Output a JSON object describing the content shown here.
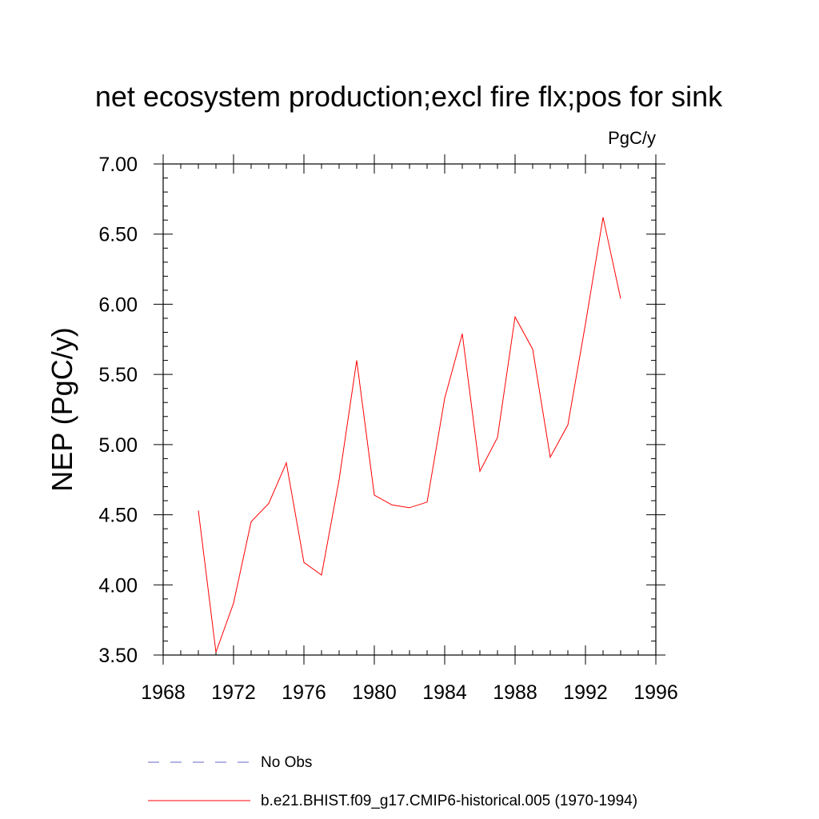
{
  "chart_data": {
    "type": "line",
    "title": "net ecosystem production;excl fire flx;pos for sink",
    "units_label": "PgC/y",
    "ylabel": "NEP  (PgC/y)",
    "xlabel": "",
    "xlim": [
      1968,
      1996
    ],
    "ylim": [
      3.5,
      7.0
    ],
    "x_ticks": [
      1968,
      1972,
      1976,
      1980,
      1984,
      1988,
      1992,
      1996
    ],
    "y_ticks": [
      "3.50",
      "4.00",
      "4.50",
      "5.00",
      "5.50",
      "6.00",
      "6.50",
      "7.00"
    ],
    "y_tick_values": [
      3.5,
      4.0,
      4.5,
      5.0,
      5.5,
      6.0,
      6.5,
      7.0
    ],
    "series": [
      {
        "name": "b.e21.BHIST.f09_g17.CMIP6-historical.005 (1970-1994)",
        "color": "#ff0000",
        "x": [
          1970,
          1971,
          1972,
          1973,
          1974,
          1975,
          1976,
          1977,
          1978,
          1979,
          1980,
          1981,
          1982,
          1983,
          1984,
          1985,
          1986,
          1987,
          1988,
          1989,
          1990,
          1991,
          1992,
          1993,
          1994
        ],
        "values": [
          4.53,
          3.52,
          3.87,
          4.45,
          4.58,
          4.87,
          4.16,
          4.07,
          4.75,
          5.6,
          4.64,
          4.57,
          4.55,
          4.59,
          5.33,
          5.79,
          4.81,
          5.05,
          5.91,
          5.68,
          4.91,
          5.14,
          5.86,
          6.62,
          6.04
        ]
      }
    ],
    "legend": [
      {
        "label": "No Obs",
        "style": "dashed",
        "color": "#6666cc"
      },
      {
        "label": "b.e21.BHIST.f09_g17.CMIP6-historical.005 (1970-1994)",
        "style": "solid",
        "color": "#ff0000"
      }
    ],
    "legend_position": "bottom-center"
  }
}
